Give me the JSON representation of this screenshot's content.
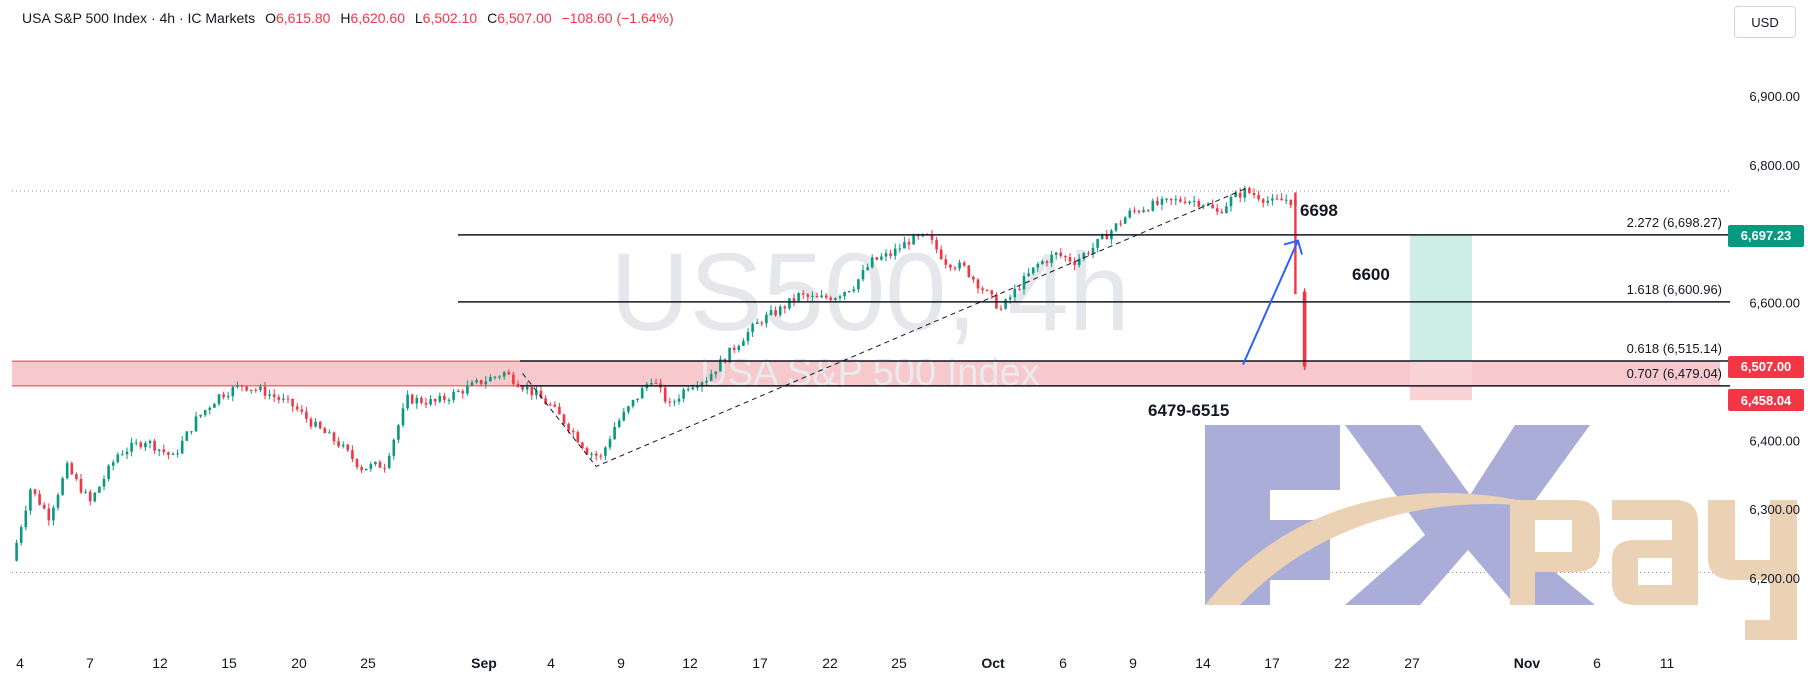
{
  "header": {
    "symbol": "USA S&P 500 Index · 4h · IC Markets",
    "open_label": "O",
    "open": "6,615.80",
    "high_label": "H",
    "high": "6,620.60",
    "low_label": "L",
    "low": "6,502.10",
    "close_label": "C",
    "close": "6,507.00",
    "change": "−108.60 (−1.64%)"
  },
  "currency": "USD",
  "watermark": {
    "main": "US500, 4h",
    "sub": "USA S&P 500 Index"
  },
  "price_tags": [
    {
      "label": "6,697.23",
      "value": 6697.23,
      "color": "green"
    },
    {
      "label": "6,507.00",
      "value": 6507.0,
      "color": "red"
    },
    {
      "label": "6,458.04",
      "value": 6458.04,
      "color": "red"
    }
  ],
  "annotations": {
    "target_high": "6698",
    "target_mid": "6600",
    "support_zone": "6479-6515"
  },
  "logo_text": "FXpay",
  "colors": {
    "up": "#089981",
    "down": "#f23645",
    "zone": "#f7c6c9",
    "target": "#cdeee5",
    "arrow": "#2962ff"
  },
  "chart_data": {
    "type": "candlestick",
    "ylim": [
      6160,
      6960
    ],
    "y_ticks": [
      6200,
      6300,
      6400,
      6500,
      6600,
      6700,
      6800,
      6900
    ],
    "y_tick_labels": [
      "6,200.00",
      "6,300.00",
      "6,400.00",
      "6,500.00",
      "6,600.00",
      "6,700.00",
      "6,800.00",
      "6,900.00"
    ],
    "x_ticks": [
      "4",
      "7",
      "12",
      "15",
      "20",
      "25",
      "Sep",
      "4",
      "9",
      "12",
      "17",
      "22",
      "25",
      "Oct",
      "6",
      "9",
      "14",
      "17",
      "22",
      "27",
      "Nov",
      "6",
      "11"
    ],
    "bold_x_ticks": [
      "Sep",
      "Oct",
      "Nov"
    ],
    "price_path": [
      [
        0,
        6225
      ],
      [
        4,
        6330
      ],
      [
        8,
        6290
      ],
      [
        12,
        6360
      ],
      [
        17,
        6310
      ],
      [
        23,
        6380
      ],
      [
        29,
        6400
      ],
      [
        35,
        6375
      ],
      [
        40,
        6430
      ],
      [
        45,
        6465
      ],
      [
        50,
        6480
      ],
      [
        55,
        6470
      ],
      [
        61,
        6450
      ],
      [
        66,
        6420
      ],
      [
        71,
        6395
      ],
      [
        76,
        6360
      ],
      [
        81,
        6365
      ],
      [
        86,
        6460
      ],
      [
        92,
        6455
      ],
      [
        97,
        6470
      ],
      [
        102,
        6485
      ],
      [
        107,
        6498
      ],
      [
        112,
        6475
      ],
      [
        117,
        6450
      ],
      [
        121,
        6420
      ],
      [
        125,
        6385
      ],
      [
        128,
        6375
      ],
      [
        131,
        6420
      ],
      [
        135,
        6455
      ],
      [
        139,
        6490
      ],
      [
        143,
        6450
      ],
      [
        147,
        6480
      ],
      [
        151,
        6490
      ],
      [
        155,
        6520
      ],
      [
        159,
        6550
      ],
      [
        163,
        6575
      ],
      [
        167,
        6590
      ],
      [
        171,
        6610
      ],
      [
        175,
        6605
      ],
      [
        179,
        6610
      ],
      [
        183,
        6625
      ],
      [
        187,
        6660
      ],
      [
        191,
        6670
      ],
      [
        195,
        6690
      ],
      [
        199,
        6695
      ],
      [
        203,
        6660
      ],
      [
        207,
        6650
      ],
      [
        211,
        6620
      ],
      [
        215,
        6590
      ],
      [
        219,
        6625
      ],
      [
        223,
        6655
      ],
      [
        227,
        6670
      ],
      [
        231,
        6660
      ],
      [
        235,
        6680
      ],
      [
        239,
        6705
      ],
      [
        243,
        6730
      ],
      [
        247,
        6740
      ],
      [
        251,
        6745
      ],
      [
        255,
        6750
      ],
      [
        259,
        6745
      ],
      [
        262,
        6730
      ],
      [
        265,
        6750
      ],
      [
        268,
        6762
      ],
      [
        271,
        6755
      ],
      [
        274,
        6745
      ],
      [
        277,
        6750
      ],
      [
        279,
        6745
      ]
    ],
    "final_drop": {
      "open": 6615.8,
      "high": 6620.6,
      "low": 6502.1,
      "close": 6507.0
    },
    "fibonacci": [
      {
        "ratio": "2.272",
        "value": 6698.27,
        "label": "2.272 (6,698.27)"
      },
      {
        "ratio": "1.618",
        "value": 6600.96,
        "label": "1.618 (6,600.96)"
      },
      {
        "ratio": "0.618",
        "value": 6515.14,
        "label": "0.618 (6,515.14)"
      },
      {
        "ratio": "0.707",
        "value": 6479.04,
        "label": "0.707 (6,479.04)"
      }
    ],
    "dotted_levels": [
      6762,
      6208
    ],
    "support_zone": [
      6479,
      6515
    ],
    "swing_points": [
      [
        6497
      ],
      [
        6362
      ],
      [
        6765
      ]
    ],
    "projection_arrow": {
      "from": 6510,
      "to": 6690
    },
    "target_box": {
      "top": 6698,
      "mid": 6515,
      "bottom": 6458
    }
  }
}
